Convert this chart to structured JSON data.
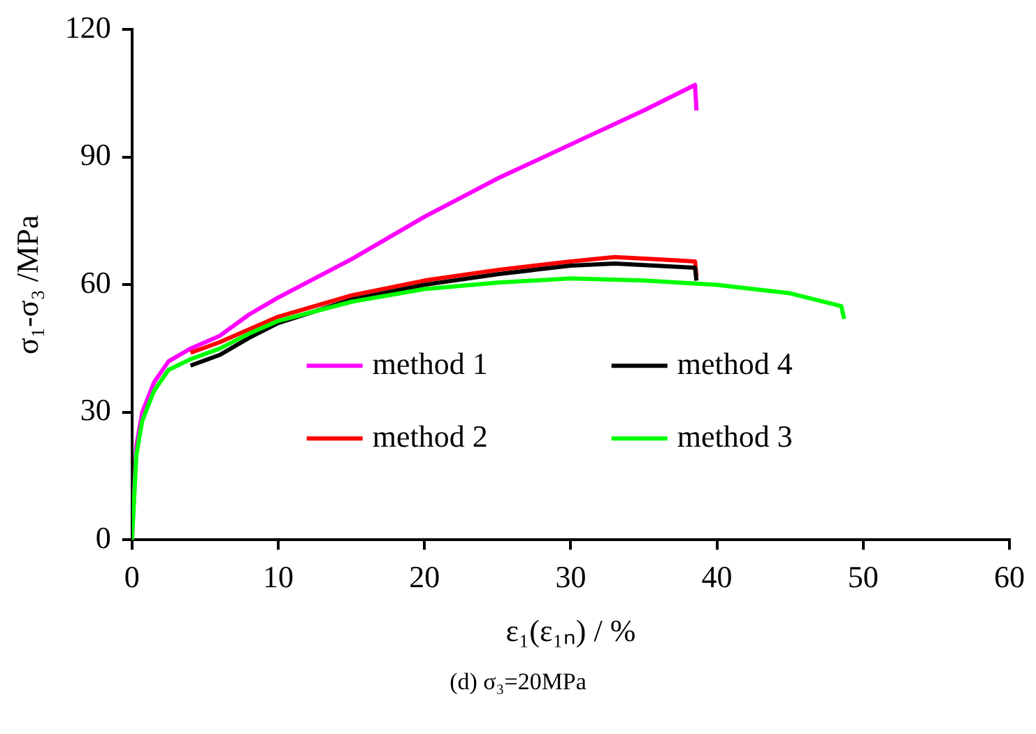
{
  "chart_data": {
    "type": "line",
    "xlabel": "ε₁(ε₁ₙ) / %",
    "ylabel": "σ₁-σ₃ /MPa",
    "annotations": [
      "(d) σ₃=20MPa"
    ],
    "xlim": [
      0,
      60
    ],
    "xticks": [
      0,
      10,
      20,
      30,
      40,
      50,
      60
    ],
    "ylim": [
      0,
      120
    ],
    "yticks": [
      0,
      30,
      60,
      90,
      120
    ],
    "grid": false,
    "legend": "center",
    "marker": "none",
    "line_style": "solid",
    "series": [
      {
        "name": "method 1",
        "color": "#ff00ff",
        "x": [
          0,
          0.3,
          0.7,
          1.5,
          2.5,
          4,
          6,
          8,
          10,
          15,
          20,
          25,
          30,
          35,
          38.5,
          38.6
        ],
        "values": [
          0,
          22,
          30,
          37,
          42,
          45,
          48,
          53,
          57,
          66,
          76,
          85,
          93,
          101,
          107,
          101
        ]
      },
      {
        "name": "method 2",
        "color": "#ff0000",
        "x": [
          4,
          6,
          8,
          10,
          15,
          20,
          25,
          30,
          33,
          36,
          38.5,
          38.6
        ],
        "values": [
          44,
          46.5,
          49.5,
          52.5,
          57.5,
          61,
          63.5,
          65.5,
          66.5,
          66,
          65.5,
          62
        ]
      },
      {
        "name": "method 4",
        "color": "#000000",
        "x": [
          4,
          6,
          8,
          10,
          15,
          20,
          25,
          30,
          33,
          38.5,
          38.6
        ],
        "values": [
          41,
          43.5,
          47.5,
          51,
          56.5,
          60,
          62.5,
          64.5,
          65,
          64,
          61
        ]
      },
      {
        "name": "method 3",
        "color": "#00ff00",
        "x": [
          0,
          0.3,
          0.7,
          1.5,
          2.5,
          4,
          6,
          8,
          10,
          15,
          20,
          25,
          30,
          35,
          40,
          45,
          48.5,
          48.7
        ],
        "values": [
          0,
          20,
          28,
          35,
          40,
          42.5,
          45,
          48.5,
          51.5,
          56,
          59,
          60.5,
          61.5,
          61,
          60,
          58,
          55,
          52
        ]
      }
    ]
  }
}
